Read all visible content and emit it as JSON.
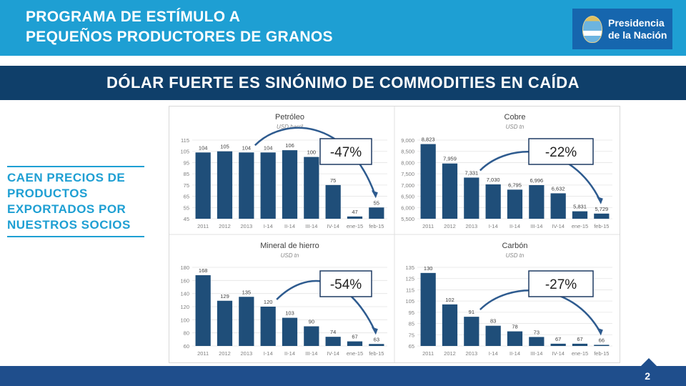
{
  "header": {
    "title_line1": "PROGRAMA DE ESTÍMULO A",
    "title_line2": "PEQUEÑOS PRODUCTORES DE GRANOS",
    "logo_line1": "Presidencia",
    "logo_line2": "de la Nación"
  },
  "banner": "DÓLAR FUERTE ES SINÓNIMO DE COMMODITIES EN CAÍDA",
  "side_text": [
    "CAEN PRECIOS DE",
    "PRODUCTOS",
    "EXPORTADOS POR",
    "NUESTROS SOCIOS"
  ],
  "page_number": "2",
  "colors": {
    "bar": "#1f4e79",
    "header": "#1e9fd3",
    "band": "#0f3f6a"
  },
  "chart_data": [
    {
      "type": "bar",
      "title": "Petróleo",
      "subtitle": "USD barril",
      "categories": [
        "2011",
        "2012",
        "2013",
        "I-14",
        "II-14",
        "III-14",
        "IV-14",
        "ene-15",
        "feb-15"
      ],
      "values": [
        104,
        105,
        104,
        104,
        106,
        100,
        75,
        47,
        55
      ],
      "value_labels": [
        "104",
        "105",
        "104",
        "104",
        "106",
        "100",
        "75",
        "47",
        "55"
      ],
      "yticks": [
        "115",
        "105",
        "95",
        "85",
        "75",
        "65",
        "55",
        "45"
      ],
      "ylim": [
        45,
        115
      ],
      "callout": "-47%",
      "arrow_from": 2
    },
    {
      "type": "bar",
      "title": "Cobre",
      "subtitle": "USD tn",
      "categories": [
        "2011",
        "2012",
        "2013",
        "I-14",
        "II-14",
        "III-14",
        "IV-14",
        "ene-15",
        "feb-15"
      ],
      "values": [
        8823,
        7959,
        7331,
        7030,
        6795,
        6996,
        6632,
        5831,
        5729
      ],
      "value_labels": [
        "8,823",
        "7,959",
        "7,331",
        "7,030",
        "6,795",
        "6,996",
        "6,632",
        "5,831",
        "5,729"
      ],
      "yticks": [
        "9,000",
        "8,500",
        "8,000",
        "7,500",
        "7,000",
        "6,500",
        "6,000",
        "5,500"
      ],
      "ylim": [
        5500,
        9000
      ],
      "callout": "-22%",
      "arrow_from": 2
    },
    {
      "type": "bar",
      "title": "Mineral de hierro",
      "subtitle": "USD tn",
      "categories": [
        "2011",
        "2012",
        "2013",
        "I-14",
        "II-14",
        "III-14",
        "IV-14",
        "ene-15",
        "feb-15"
      ],
      "values": [
        168,
        129,
        135,
        120,
        103,
        90,
        74,
        67,
        63
      ],
      "value_labels": [
        "168",
        "129",
        "135",
        "120",
        "103",
        "90",
        "74",
        "67",
        "63"
      ],
      "yticks": [
        "180",
        "160",
        "140",
        "120",
        "100",
        "80",
        "60"
      ],
      "ylim": [
        60,
        180
      ],
      "callout": "-54%",
      "arrow_from": 3
    },
    {
      "type": "bar",
      "title": "Carbón",
      "subtitle": "USD tn",
      "categories": [
        "2011",
        "2012",
        "2013",
        "I-14",
        "II-14",
        "III-14",
        "IV-14",
        "ene-15",
        "feb-15"
      ],
      "values": [
        130,
        102,
        91,
        83,
        78,
        73,
        67,
        67,
        66
      ],
      "value_labels": [
        "130",
        "102",
        "91",
        "83",
        "78",
        "73",
        "67",
        "67",
        "66"
      ],
      "yticks": [
        "135",
        "125",
        "115",
        "105",
        "95",
        "85",
        "75",
        "65"
      ],
      "ylim": [
        65,
        135
      ],
      "callout": "-27%",
      "arrow_from": 2
    }
  ]
}
